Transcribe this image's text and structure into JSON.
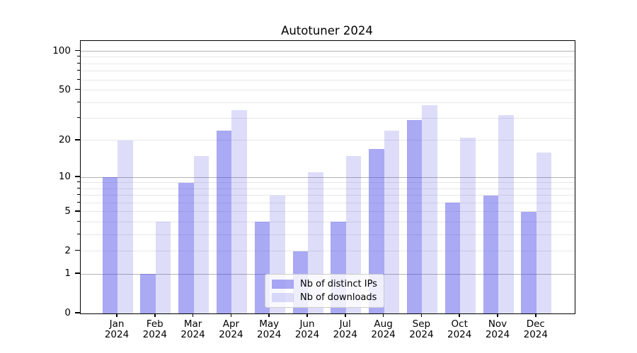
{
  "title": "Autotuner 2024",
  "chart_data": {
    "type": "bar",
    "title": "Autotuner 2024",
    "x_tick_year": "2024",
    "categories": [
      "Jan",
      "Feb",
      "Mar",
      "Apr",
      "May",
      "Jun",
      "Jul",
      "Aug",
      "Sep",
      "Oct",
      "Nov",
      "Dec"
    ],
    "series": [
      {
        "name": "Nb of distinct IPs",
        "color": "rgba(64,64,230,0.45)",
        "values": [
          10,
          1,
          9,
          24,
          4,
          2,
          4,
          17,
          29,
          6,
          7,
          5
        ]
      },
      {
        "name": "Nb of downloads",
        "color": "rgba(64,64,230,0.18)",
        "values": [
          20,
          4,
          15,
          35,
          7,
          11,
          15,
          24,
          38,
          21,
          32,
          16
        ]
      }
    ],
    "y_scale": "log1p",
    "ylim": [
      0,
      120
    ],
    "y_tick_labels": [
      0,
      1,
      2,
      5,
      10,
      20,
      50,
      100
    ],
    "y_major_gridlines": [
      1,
      10,
      100
    ],
    "y_minor_gridlines": [
      2,
      3,
      4,
      5,
      6,
      7,
      8,
      9,
      20,
      30,
      40,
      50,
      60,
      70,
      80,
      90
    ],
    "grid": true,
    "legend": {
      "position": "lower center",
      "items": [
        "Nb of distinct IPs",
        "Nb of downloads"
      ]
    },
    "colors": {
      "major_grid": "#b3b3b3",
      "minor_grid": "#e7e7e7",
      "spine": "#000000",
      "text": "#000000",
      "legend_border": "#cccccc",
      "legend_bg": "rgba(255,255,255,0.8)"
    }
  }
}
